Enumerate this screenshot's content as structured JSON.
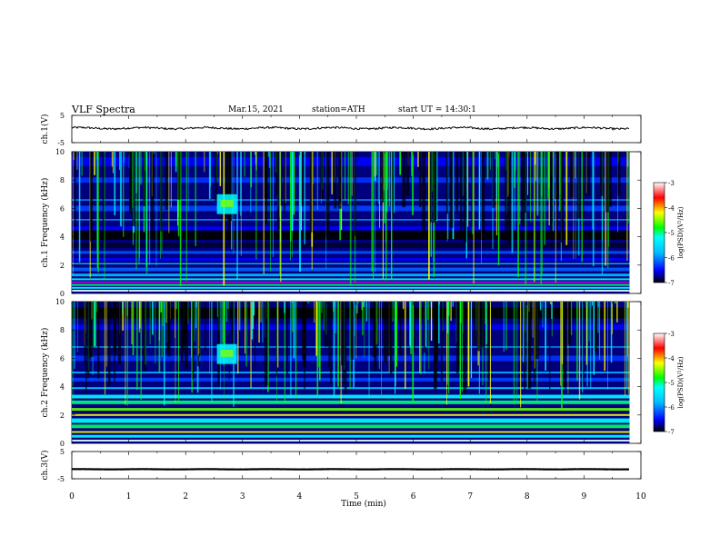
{
  "header": {
    "title": "VLF Spectra",
    "date": "Mar.15, 2021",
    "station": "station=ATH",
    "start": "start UT =  14:30:1"
  },
  "chart_data": {
    "type": "heatmap",
    "xlabel": "Time (min)",
    "xlim": [
      0,
      10
    ],
    "x_ticks": [
      "0",
      "1",
      "2",
      "3",
      "4",
      "5",
      "6",
      "7",
      "8",
      "9",
      "10"
    ],
    "data_end_min": 9.8,
    "panels": [
      {
        "id": "ch1-waveform",
        "type": "line",
        "ylabel": "ch.1(V)",
        "ylim": [
          -5,
          5
        ],
        "y_ticks": [
          "5",
          "-5"
        ],
        "baseline_v": 0.3,
        "amplitude_v": 0.5
      },
      {
        "id": "ch1-spectrogram",
        "type": "heatmap",
        "ylabel": "ch.1 Frequency (kHz)",
        "ylim": [
          0,
          10
        ],
        "y_ticks": [
          "10",
          "8",
          "6",
          "4",
          "2",
          "0"
        ],
        "colorbar": {
          "label": "log(PSD)(V²/Hz)",
          "range": [
            -7,
            -3
          ],
          "ticks": [
            "-3",
            "-4",
            "-5",
            "-6",
            "-7"
          ]
        }
      },
      {
        "id": "ch2-spectrogram",
        "type": "heatmap",
        "ylabel": "ch.2 Frequency (kHz)",
        "ylim": [
          0,
          10
        ],
        "y_ticks": [
          "10",
          "8",
          "6",
          "4",
          "2",
          "0"
        ],
        "colorbar": {
          "label": "log(PSD)(V²/Hz)",
          "range": [
            -7,
            -3
          ],
          "ticks": [
            "-3",
            "-4",
            "-5",
            "-6",
            "-7"
          ]
        }
      },
      {
        "id": "ch3-waveform",
        "type": "line",
        "ylabel": "ch.3(V)",
        "ylim": [
          -5,
          5
        ],
        "y_ticks": [
          "5",
          "-5"
        ],
        "baseline_v": -1.5,
        "amplitude_v": 0.1
      }
    ],
    "colormap": [
      "#000000",
      "#00007f",
      "#0000ff",
      "#00a0ff",
      "#00ffff",
      "#00ff00",
      "#ffff00",
      "#ff7f00",
      "#ff0000",
      "#ffffff"
    ]
  }
}
